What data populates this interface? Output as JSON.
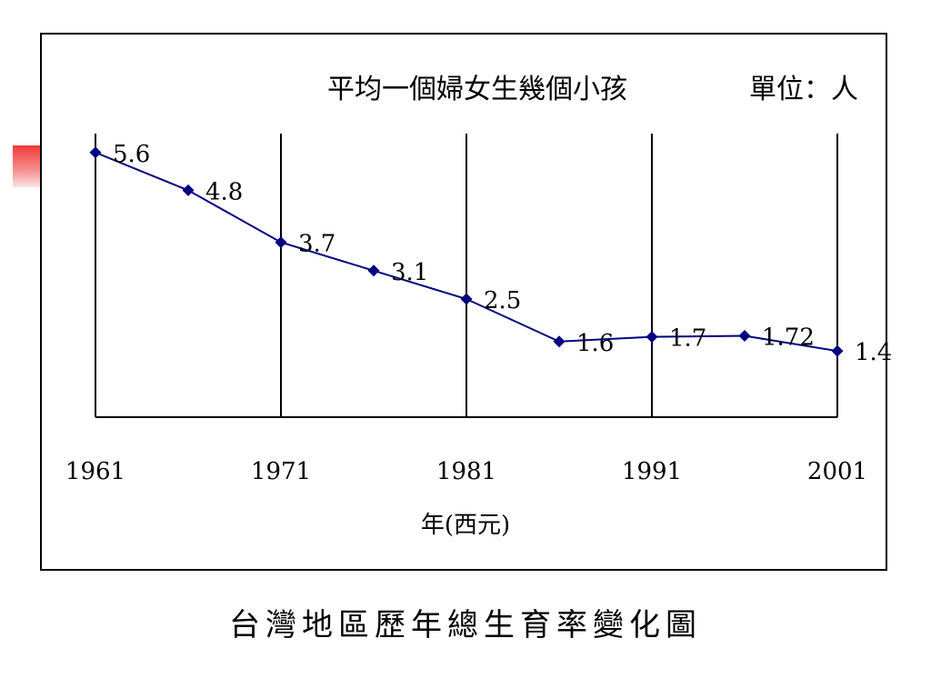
{
  "caption": "台灣地區歷年總生育率變化圖",
  "colors": {
    "line": "#000080",
    "marker": "#000080",
    "grid": "#000000",
    "accent": "#f03a3a"
  },
  "chart_data": {
    "type": "line",
    "title": "平均一個婦女生幾個小孩",
    "unit_label": "單位：人",
    "xlabel": "年(西元)",
    "ylabel": "",
    "x_ticks": [
      "1961",
      "1971",
      "1981",
      "1991",
      "2001"
    ],
    "xlim": [
      1961,
      2001
    ],
    "ylim": [
      0,
      6
    ],
    "grid": "vertical",
    "series": [
      {
        "x": [
          1961,
          1966,
          1971,
          1976,
          1981,
          1986,
          1991,
          1996,
          2001
        ],
        "values": [
          5.6,
          4.8,
          3.7,
          3.1,
          2.5,
          1.6,
          1.7,
          1.72,
          1.4
        ],
        "labels": [
          "5.6",
          "4.8",
          "3.7",
          "3.1",
          "2.5",
          "1.6",
          "1.7",
          "1.72",
          "1.4"
        ]
      }
    ]
  }
}
